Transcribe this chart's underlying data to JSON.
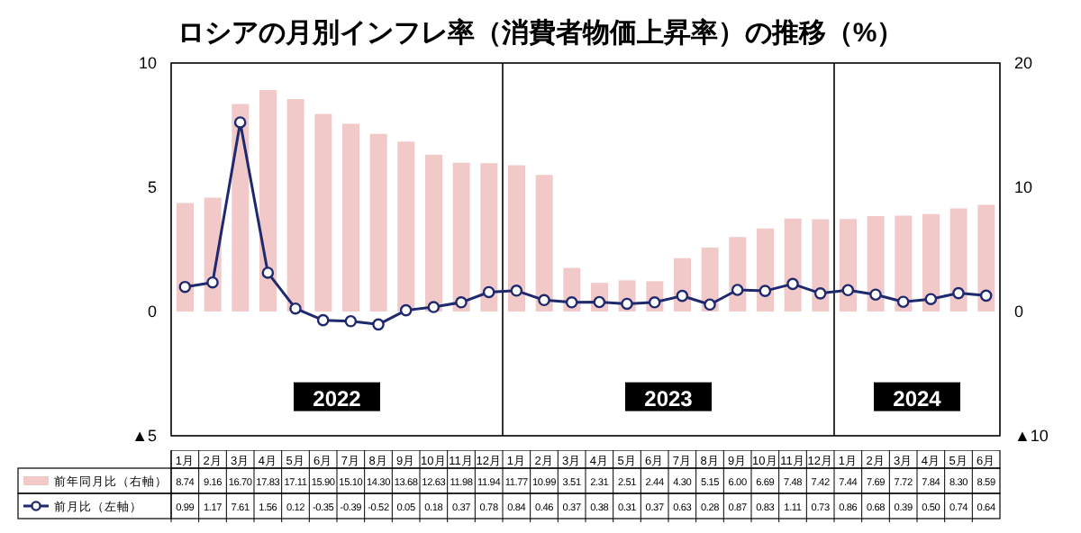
{
  "chart_data": {
    "type": "bar",
    "title": "ロシアの月別インフレ率（消費者物価上昇率）の推移（%）",
    "categories": [
      "1月",
      "2月",
      "3月",
      "4月",
      "5月",
      "6月",
      "7月",
      "8月",
      "9月",
      "10月",
      "11月",
      "12月",
      "1月",
      "2月",
      "3月",
      "4月",
      "5月",
      "6月",
      "7月",
      "8月",
      "9月",
      "10月",
      "11月",
      "12月",
      "1月",
      "2月",
      "3月",
      "4月",
      "5月",
      "6月"
    ],
    "series": [
      {
        "name": "前年同月比（右軸）",
        "axis": "y2",
        "color": "#f2c9c9",
        "values": [
          8.74,
          9.16,
          16.7,
          17.83,
          17.11,
          15.9,
          15.1,
          14.3,
          13.68,
          12.63,
          11.98,
          11.94,
          11.77,
          10.99,
          3.51,
          2.31,
          2.51,
          2.44,
          4.3,
          5.15,
          6.0,
          6.69,
          7.48,
          7.42,
          7.44,
          7.69,
          7.72,
          7.84,
          8.3,
          8.59
        ],
        "value_labels": [
          "8.74",
          "9.16",
          "16.70",
          "17.83",
          "17.11",
          "15.90",
          "15.10",
          "14.30",
          "13.68",
          "12.63",
          "11.98",
          "11.94",
          "11.77",
          "10.99",
          "3.51",
          "2.31",
          "2.51",
          "2.44",
          "4.30",
          "5.15",
          "6.00",
          "6.69",
          "7.48",
          "7.42",
          "7.44",
          "7.69",
          "7.72",
          "7.84",
          "8.30",
          "8.59"
        ]
      },
      {
        "name": "前月比（左軸）",
        "type": "line",
        "color": "#1f2a6e",
        "values": [
          0.99,
          1.17,
          7.61,
          1.56,
          0.12,
          -0.35,
          -0.39,
          -0.52,
          0.05,
          0.18,
          0.37,
          0.78,
          0.84,
          0.46,
          0.37,
          0.38,
          0.31,
          0.37,
          0.63,
          0.28,
          0.87,
          0.83,
          1.11,
          0.73,
          0.86,
          0.68,
          0.39,
          0.5,
          0.74,
          0.64
        ],
        "value_labels": [
          "0.99",
          "1.17",
          "7.61",
          "1.56",
          "0.12",
          "-0.35",
          "-0.39",
          "-0.52",
          "0.05",
          "0.18",
          "0.37",
          "0.78",
          "0.84",
          "0.46",
          "0.37",
          "0.38",
          "0.31",
          "0.37",
          "0.63",
          "0.28",
          "0.87",
          "0.83",
          "1.11",
          "0.73",
          "0.86",
          "0.68",
          "0.39",
          "0.50",
          "0.74",
          "0.64"
        ]
      }
    ],
    "ylim": [
      -5,
      10
    ],
    "yticks": [
      {
        "value": -5,
        "label": "▲5"
      },
      0,
      5,
      10
    ],
    "y2lim": [
      -10,
      20
    ],
    "y2ticks": [
      {
        "value": -10,
        "label": "▲10"
      },
      0,
      10,
      20
    ],
    "annotations": [
      "2022",
      "2023",
      "2024"
    ],
    "marker": "circle",
    "legend": "bottom"
  }
}
